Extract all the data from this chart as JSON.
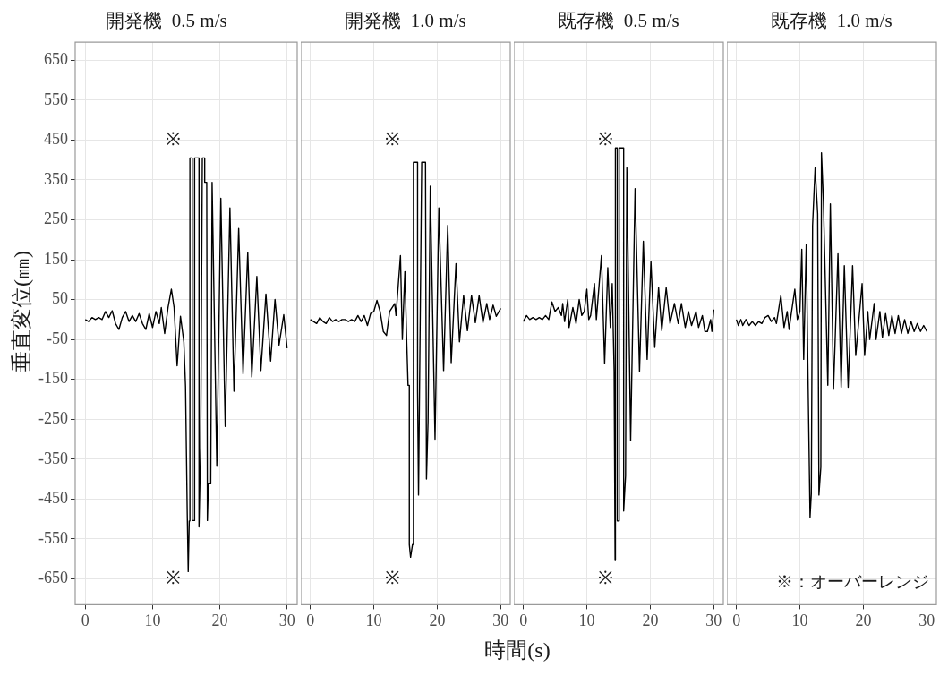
{
  "chart_data": [
    {
      "type": "line",
      "title": "開発機  0.5 m/s",
      "ylabel": "垂直変位(㎜)",
      "color": "#000000",
      "grid": true,
      "xlim": [
        -1.5,
        31.5
      ],
      "xticks": [
        0,
        10,
        20,
        30
      ],
      "ylim": [
        -715,
        695
      ],
      "yticks": [
        650,
        550,
        450,
        350,
        250,
        150,
        50,
        -50,
        -150,
        -250,
        -350,
        -450,
        -550,
        -650
      ],
      "annotations": [
        "※",
        "※"
      ],
      "x": [
        0,
        0.5,
        1,
        1.5,
        2,
        2.5,
        3,
        3.5,
        4,
        4.5,
        5,
        5.5,
        6,
        6.5,
        7,
        7.5,
        8,
        8.5,
        9,
        9.5,
        10,
        10.5,
        11,
        11.3,
        11.8,
        12.3,
        12.8,
        13.2,
        13.65,
        14.15,
        14.65,
        14.9,
        15.15,
        15.3,
        15.45,
        15.55,
        15.55,
        15.9,
        15.9,
        16.25,
        16.25,
        16.9,
        16.9,
        17.15,
        17.4,
        17.75,
        17.75,
        18.05,
        18.15,
        18.3,
        18.65,
        18.85,
        19.55,
        20.15,
        20.8,
        21.5,
        22.1,
        22.8,
        23.45,
        24.15,
        24.75,
        25.5,
        26.1,
        26.85,
        27.55,
        28.2,
        28.8,
        29.5,
        30
      ],
      "values": [
        0,
        -5,
        5,
        0,
        5,
        0,
        20,
        5,
        22,
        -10,
        -25,
        5,
        20,
        -5,
        10,
        -5,
        15,
        -10,
        -25,
        15,
        -20,
        20,
        -10,
        30,
        -35,
        30,
        76,
        30,
        -116,
        8,
        -56,
        -168,
        -480,
        -632,
        -505,
        -505,
        405,
        405,
        -504,
        -504,
        405,
        405,
        -520,
        -320,
        405,
        405,
        344,
        344,
        -504,
        -412,
        -412,
        344,
        -368,
        304,
        -268,
        280,
        -180,
        228,
        -136,
        168,
        -144,
        108,
        -128,
        64,
        -104,
        50,
        -64,
        12,
        -72
      ]
    },
    {
      "type": "line",
      "title": "開発機  1.0 m/s",
      "xlabel": "時間(s)",
      "color": "#000000",
      "grid": true,
      "tick_labels": "x",
      "xlim": [
        -1.5,
        31.5
      ],
      "xticks": [
        0,
        10,
        20,
        30
      ],
      "ylim": [
        -715,
        695
      ],
      "yticks": [
        650,
        550,
        450,
        350,
        250,
        150,
        50,
        -50,
        -150,
        -250,
        -350,
        -450,
        -550,
        -650
      ],
      "annotations": [
        "※",
        "※"
      ],
      "x": [
        0,
        0.5,
        1,
        1.5,
        2,
        2.5,
        3,
        3.5,
        4,
        4.5,
        5,
        5.5,
        6,
        6.5,
        7,
        7.5,
        8,
        8.5,
        9,
        9.5,
        10,
        10.5,
        11,
        11.5,
        12,
        12.5,
        13.3,
        13.5,
        14.2,
        14.5,
        14.9,
        15.2,
        15.4,
        15.6,
        15.6,
        15.8,
        16.1,
        16.25,
        16.25,
        16.9,
        16.9,
        17.05,
        17.55,
        18.15,
        18.3,
        18.55,
        18.9,
        19.65,
        20.25,
        21,
        21.65,
        22.2,
        22.95,
        23.5,
        24.15,
        24.75,
        25.4,
        26,
        26.6,
        27.2,
        27.8,
        28.25,
        28.8,
        29.3,
        30
      ],
      "values": [
        0,
        -5,
        -10,
        5,
        -5,
        -10,
        5,
        -5,
        0,
        -5,
        0,
        0,
        -5,
        0,
        -5,
        10,
        -5,
        10,
        -15,
        15,
        20,
        48,
        20,
        -30,
        -40,
        20,
        40,
        10,
        160,
        -50,
        120,
        -60,
        -165,
        -165,
        -564,
        -596,
        -564,
        -564,
        394,
        394,
        -180,
        -440,
        394,
        394,
        -400,
        -256,
        334,
        -300,
        280,
        -128,
        236,
        -108,
        140,
        -56,
        60,
        -28,
        60,
        -8,
        60,
        -8,
        40,
        0,
        36,
        8,
        28
      ]
    },
    {
      "type": "line",
      "title": "既存機  0.5 m/s",
      "color": "#000000",
      "grid": true,
      "tick_labels": "x",
      "xlim": [
        -1.5,
        31.5
      ],
      "xticks": [
        0,
        10,
        20,
        30
      ],
      "ylim": [
        -715,
        695
      ],
      "yticks": [
        650,
        550,
        450,
        350,
        250,
        150,
        50,
        -50,
        -150,
        -250,
        -350,
        -450,
        -550,
        -650
      ],
      "annotations": [
        "※",
        "※"
      ],
      "x": [
        0,
        0.5,
        1,
        1.5,
        2,
        2.5,
        3,
        3.5,
        4,
        4.5,
        5,
        5.5,
        6,
        6.2,
        6.5,
        7,
        7.2,
        7.8,
        8.3,
        8.8,
        9.2,
        9.6,
        10,
        10.3,
        10.6,
        11.2,
        11.5,
        12.3,
        12.8,
        13.3,
        13.7,
        14,
        14.3,
        14.45,
        14.5,
        14.8,
        14.8,
        15.1,
        15.1,
        15.8,
        15.8,
        16.1,
        16.3,
        16.9,
        17.6,
        18.3,
        18.9,
        19.5,
        20.1,
        20.7,
        21.3,
        21.8,
        22.5,
        23.1,
        23.8,
        24.4,
        24.9,
        25.5,
        26,
        26.5,
        27.2,
        27.6,
        28.2,
        28.6,
        29,
        29.5,
        29.7,
        30
      ],
      "values": [
        -5,
        10,
        0,
        5,
        0,
        5,
        0,
        10,
        0,
        44,
        20,
        30,
        10,
        40,
        -5,
        50,
        -20,
        30,
        -10,
        50,
        10,
        20,
        76,
        0,
        10,
        90,
        0,
        160,
        -110,
        130,
        -20,
        90,
        -130,
        -604,
        430,
        430,
        -505,
        -505,
        430,
        430,
        -480,
        -392,
        380,
        -304,
        328,
        -130,
        196,
        -100,
        145,
        -70,
        80,
        -28,
        80,
        -10,
        40,
        -10,
        40,
        -20,
        20,
        -15,
        20,
        -20,
        10,
        -30,
        -30,
        0,
        -30,
        25
      ]
    },
    {
      "type": "line",
      "title": "既存機  1.0 m/s",
      "color": "#000000",
      "grid": true,
      "tick_labels": "x",
      "xlim": [
        -1.5,
        31.5
      ],
      "xticks": [
        0,
        10,
        20,
        30
      ],
      "ylim": [
        -715,
        695
      ],
      "yticks": [
        650,
        550,
        450,
        350,
        250,
        150,
        50,
        -50,
        -150,
        -250,
        -350,
        -450,
        -550,
        -650
      ],
      "annotations": [
        "※：オーバーレンジ"
      ],
      "x": [
        0,
        0.3,
        0.7,
        1,
        1.5,
        2,
        2.5,
        3,
        3.5,
        4,
        4.5,
        5,
        5.5,
        6,
        6.3,
        7,
        7.5,
        8,
        8.3,
        8.6,
        9.2,
        9.6,
        10,
        10.3,
        10.6,
        11,
        11.3,
        11.6,
        11.8,
        12,
        12.4,
        12.8,
        13,
        13.3,
        13.4,
        13.7,
        14.4,
        14.8,
        15.3,
        16,
        16.5,
        17,
        17.6,
        18.3,
        18.8,
        19.8,
        20.2,
        20.7,
        21,
        21.7,
        22,
        22.6,
        23,
        23.5,
        24,
        24.5,
        25,
        25.5,
        26,
        26.5,
        27,
        27.5,
        28,
        28.5,
        29,
        29.5,
        30
      ],
      "values": [
        0,
        -15,
        0,
        -15,
        0,
        -15,
        -5,
        -15,
        -5,
        -10,
        5,
        10,
        -5,
        5,
        -10,
        60,
        -20,
        20,
        -25,
        10,
        76,
        0,
        20,
        176,
        -100,
        188,
        -168,
        -496,
        -436,
        236,
        380,
        265,
        -440,
        -370,
        418,
        300,
        -165,
        290,
        -175,
        165,
        -170,
        135,
        -170,
        135,
        -90,
        90,
        -90,
        20,
        -50,
        40,
        -50,
        20,
        -45,
        15,
        -40,
        10,
        -35,
        10,
        -35,
        0,
        -35,
        -5,
        -30,
        -10,
        -30,
        -15,
        -30
      ]
    }
  ]
}
